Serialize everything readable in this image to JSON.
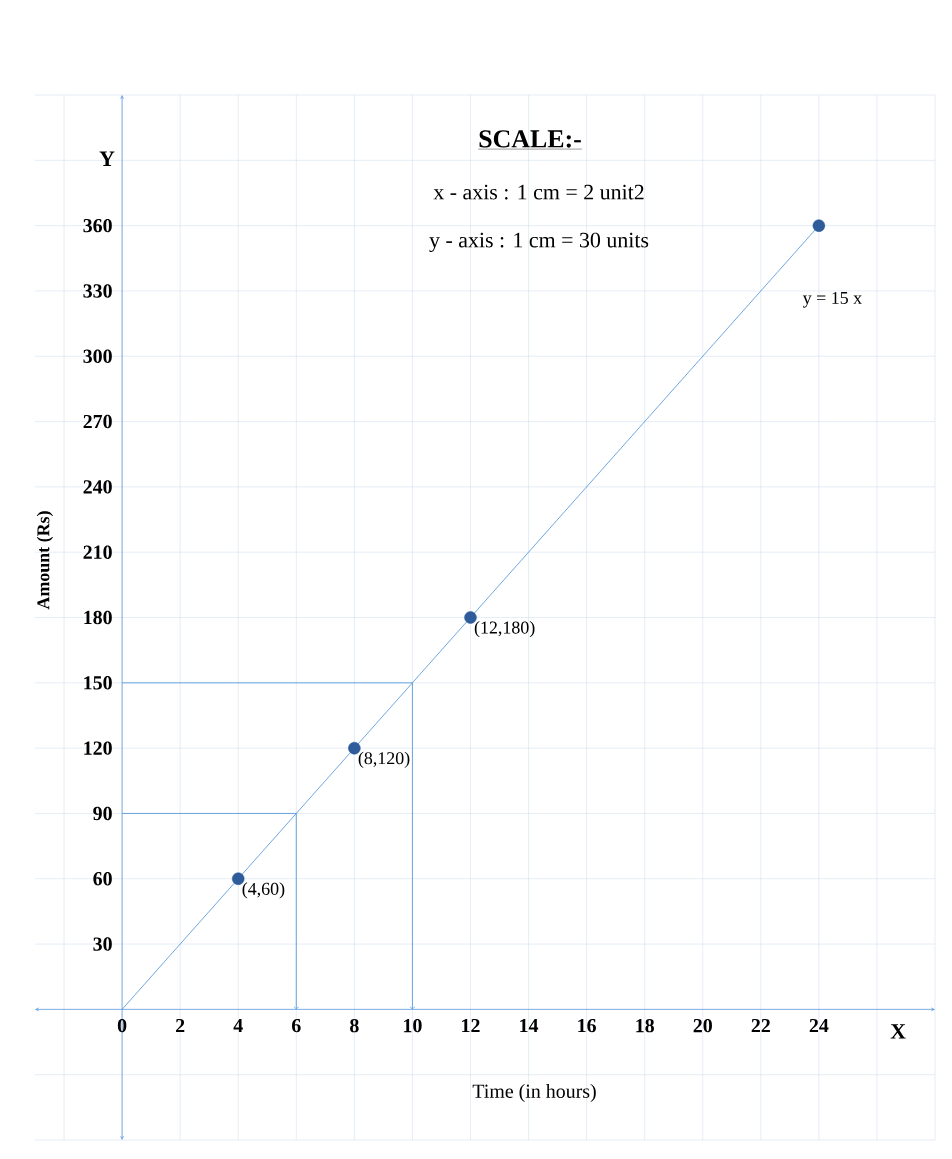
{
  "chart_data": {
    "type": "line",
    "title": "SCALE:-",
    "xlabel": "Time (in hours)",
    "ylabel": "Amount (Rs)",
    "xlim": [
      -3,
      28
    ],
    "ylim": [
      -60,
      420
    ],
    "xticks": [
      {
        "value": -2,
        "label": null
      },
      0,
      2,
      4,
      6,
      8,
      10,
      12,
      14,
      16,
      18,
      20,
      22,
      24,
      {
        "value": 26,
        "label": null
      },
      {
        "value": 28,
        "label": null
      }
    ],
    "yticks": [
      {
        "value": -60,
        "label": null
      },
      {
        "value": -30,
        "label": null
      },
      {
        "value": 0,
        "label": null
      },
      30,
      60,
      90,
      120,
      150,
      180,
      210,
      240,
      270,
      300,
      330,
      360,
      {
        "value": 390,
        "label": null
      },
      {
        "value": 420,
        "label": null
      }
    ],
    "grid": true,
    "line_style": "solid",
    "series": [
      {
        "color": "#4a90d9",
        "x": [
          0,
          24
        ],
        "values": [
          0,
          360
        ]
      },
      {
        "type": "scatter",
        "color": "#2e5c9a",
        "x": [
          4,
          8,
          12,
          24
        ],
        "values": [
          60,
          120,
          180,
          360
        ],
        "marker": "circle"
      },
      {
        "color": "#4a90d9",
        "x": [
          0,
          6,
          6
        ],
        "values": [
          90,
          90,
          0
        ]
      },
      {
        "color": "#4a90d9",
        "x": [
          0,
          10,
          10
        ],
        "values": [
          150,
          150,
          0
        ]
      }
    ],
    "annotations": [
      "x - axis : 1 cm = 2 unit2",
      "y - axis : 1 cm = 30 units",
      "y = 15 x",
      "X",
      "Y",
      {
        "text": "(4,60)",
        "x": 4,
        "y": 60
      },
      {
        "text": "(8,120)",
        "x": 8,
        "y": 120
      },
      {
        "text": "(12,180)",
        "x": 12,
        "y": 180
      }
    ]
  }
}
